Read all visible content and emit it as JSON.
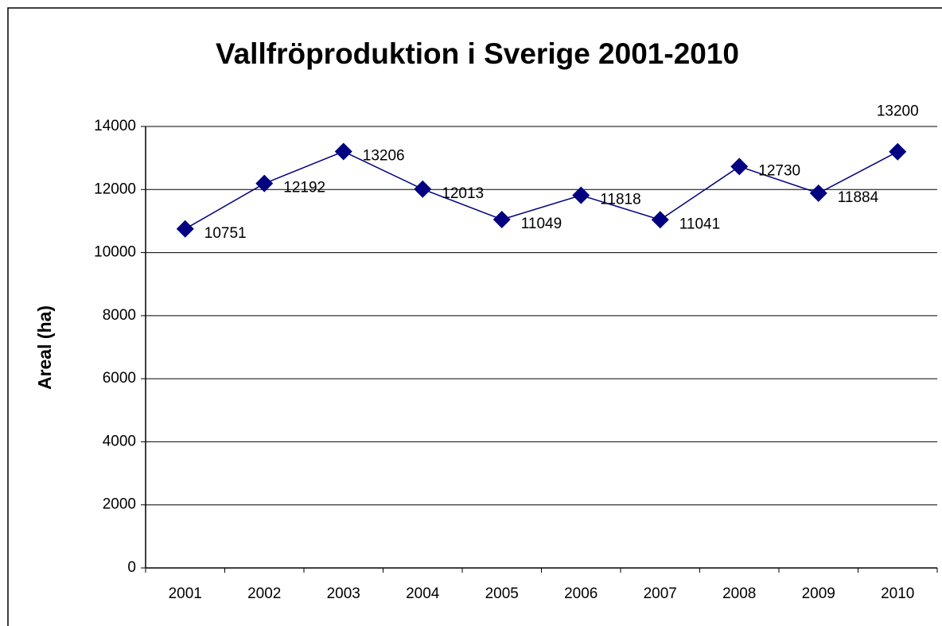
{
  "chart_data": {
    "type": "line",
    "title": "Vallfröproduktion i Sverige 2001-2010",
    "y_label": "Areal (ha)",
    "categories": [
      "2001",
      "2002",
      "2003",
      "2004",
      "2005",
      "2006",
      "2007",
      "2008",
      "2009",
      "2010"
    ],
    "values": [
      10751,
      12192,
      13206,
      12013,
      11049,
      11818,
      11041,
      12730,
      11884,
      13200
    ],
    "color": "#000080",
    "ylim": [
      0,
      14000
    ],
    "yticks": [
      0,
      2000,
      4000,
      6000,
      8000,
      10000,
      12000,
      14000
    ],
    "grid": true
  }
}
